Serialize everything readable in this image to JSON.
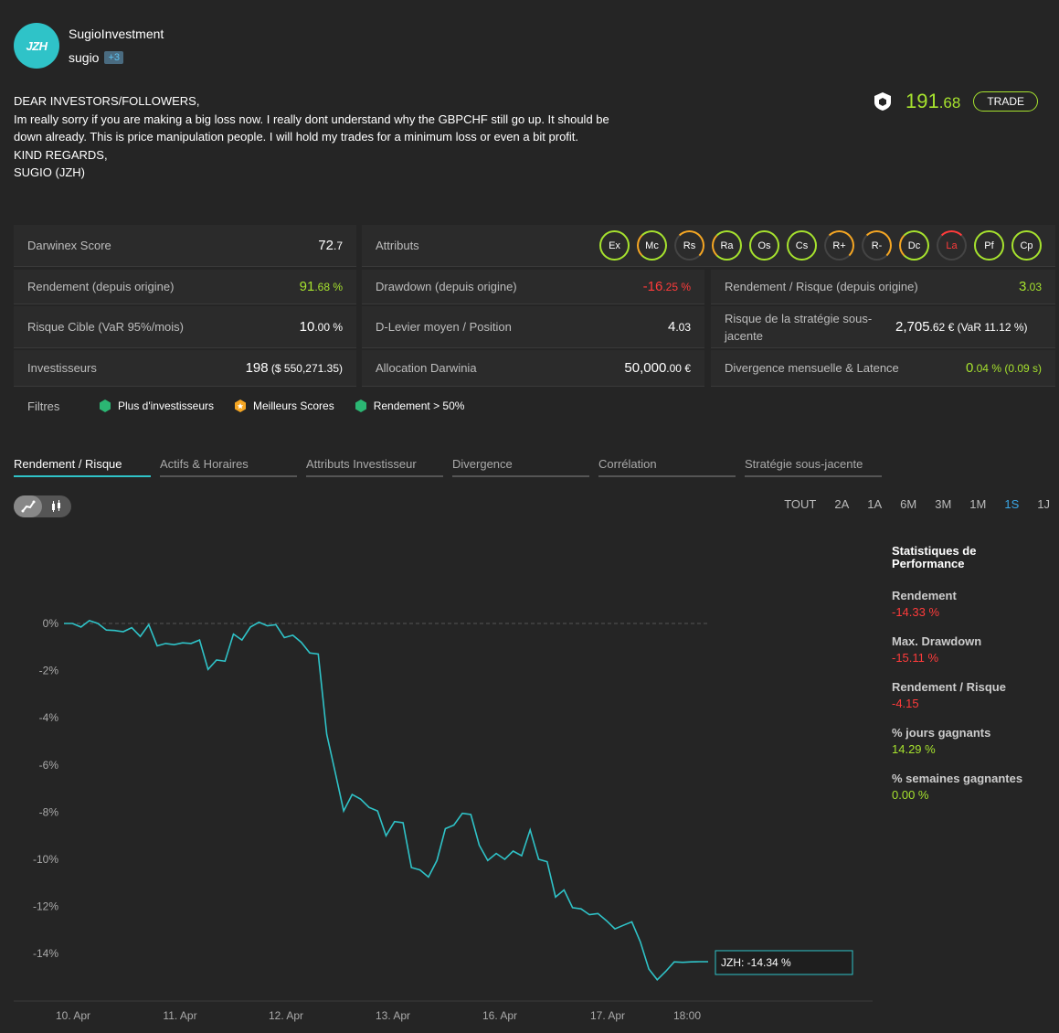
{
  "profile": {
    "avatar_text": "JZH",
    "name": "SugioInvestment",
    "handle": "sugio",
    "badge": "+3"
  },
  "message": [
    "DEAR INVESTORS/FOLLOWERS,",
    "Im really sorry if you are making a big loss now. I really dont understand why the GBPCHF still go up. It should be down already. This is price manipulation people. I will hold my trades for a minimum loss or even a bit profit.",
    "KIND REGARDS,",
    "SUGIO (JZH)"
  ],
  "price": {
    "int": "191",
    "dec": ".68"
  },
  "trade_label": "TRADE",
  "stats": {
    "score_label": "Darwinex Score",
    "score_int": "72",
    "score_dec": ".7",
    "attributes_label": "Attributs",
    "attributes": [
      "Ex",
      "Mc",
      "Rs",
      "Ra",
      "Os",
      "Cs",
      "R+",
      "R-",
      "Dc",
      "La",
      "Pf",
      "Cp"
    ],
    "return_label": "Rendement (depuis origine)",
    "return_int": "91",
    "return_dec": ".68 %",
    "drawdown_label": "Drawdown (depuis origine)",
    "drawdown_int": "-16",
    "drawdown_dec": ".25 %",
    "rr_label": "Rendement / Risque (depuis origine)",
    "rr_int": "3",
    "rr_dec": ".03",
    "var_label": "Risque Cible (VaR 95%/mois)",
    "var_int": "10",
    "var_dec": ".00 %",
    "leverage_label": "D-Levier moyen / Position",
    "leverage_int": "4",
    "leverage_dec": ".03",
    "strategy_risk_label": "Risque de la stratégie sous-jacente",
    "strategy_risk_int": "2,705",
    "strategy_risk_dec": ".62 € (VaR 11.12 %)",
    "investors_label": "Investisseurs",
    "investors_int": "198",
    "investors_dec": " ($ 550,271.35)",
    "allocation_label": "Allocation Darwinia",
    "allocation_int": "50,000",
    "allocation_dec": ".00 €",
    "divergence_label": "Divergence mensuelle & Latence",
    "divergence_int": "0",
    "divergence_dec": ".04 % (0.09 s)"
  },
  "filters": {
    "label": "Filtres",
    "items": [
      "Plus d'investisseurs",
      "Meilleurs Scores",
      "Rendement > 50%"
    ]
  },
  "tabs": [
    "Rendement / Risque",
    "Actifs & Horaires",
    "Attributs Investisseur",
    "Divergence",
    "Corrélation",
    "Stratégie sous-jacente"
  ],
  "ranges": [
    "TOUT",
    "2A",
    "1A",
    "6M",
    "3M",
    "1M",
    "1S",
    "1J"
  ],
  "perf": {
    "title": "Statistiques de Performance",
    "items": [
      {
        "k": "Rendement",
        "v": "-14.33 %",
        "color": "#ff3b3b"
      },
      {
        "k": "Max. Drawdown",
        "v": "-15.11 %",
        "color": "#ff3b3b"
      },
      {
        "k": "Rendement / Risque",
        "v": "-4.15",
        "color": "#ff3b3b"
      },
      {
        "k": "% jours gagnants",
        "v": "14.29 %",
        "color": "#a6e22e"
      },
      {
        "k": "% semaines gagnantes",
        "v": "0.00 %",
        "color": "#a6e22e"
      }
    ]
  },
  "chart_data": {
    "type": "line",
    "ylim": [
      -15.6,
      0.6
    ],
    "yticks": [
      0,
      -2,
      -4,
      -6,
      -8,
      -10,
      -12,
      -14
    ],
    "ytick_labels": [
      "0%",
      "-2%",
      "-4%",
      "-6%",
      "-8%",
      "-10%",
      "-12%",
      "-14%"
    ],
    "xtick_labels": [
      "10. Apr",
      "11. Apr",
      "12. Apr",
      "13. Apr",
      "16. Apr",
      "17. Apr",
      "18:00"
    ],
    "series": [
      {
        "name": "JZH",
        "color": "#2fc3c8",
        "x": [
          0,
          1,
          2,
          3,
          4,
          5,
          6,
          7,
          8,
          9,
          10,
          11,
          12,
          13,
          14,
          15,
          16,
          17,
          18,
          19,
          20,
          21,
          22,
          23,
          24,
          25,
          26,
          27,
          28,
          29,
          30,
          31,
          32,
          33,
          34,
          35,
          36,
          37,
          38,
          39,
          40,
          41,
          42,
          43,
          44,
          45,
          46,
          47,
          48,
          49,
          50,
          51,
          52,
          53,
          54,
          55,
          56,
          57,
          58,
          59,
          60,
          61,
          62,
          63,
          64,
          65,
          66,
          67,
          68,
          69,
          70,
          71,
          72,
          73,
          74,
          75,
          76
        ],
        "values": [
          0.0,
          0.0,
          -0.15,
          0.12,
          0.0,
          -0.28,
          -0.3,
          -0.35,
          -0.18,
          -0.55,
          -0.05,
          -0.95,
          -0.85,
          -0.9,
          -0.82,
          -0.85,
          -0.7,
          -1.95,
          -1.55,
          -1.6,
          -0.45,
          -0.7,
          -0.15,
          0.05,
          -0.1,
          -0.05,
          -0.6,
          -0.5,
          -0.8,
          -1.25,
          -1.3,
          -4.7,
          -6.3,
          -7.95,
          -7.25,
          -7.45,
          -7.8,
          -7.95,
          -9.0,
          -8.4,
          -8.45,
          -10.35,
          -10.45,
          -10.75,
          -10.05,
          -8.7,
          -8.55,
          -8.05,
          -8.1,
          -9.4,
          -10.05,
          -9.75,
          -10.0,
          -9.65,
          -9.85,
          -8.75,
          -10.0,
          -10.1,
          -11.6,
          -11.3,
          -12.05,
          -12.1,
          -12.35,
          -12.3,
          -12.6,
          -12.95,
          -12.8,
          -12.65,
          -13.5,
          -14.65,
          -15.11,
          -14.75,
          -14.35,
          -14.37,
          -14.35,
          -14.34,
          -14.34
        ],
        "last_label": "JZH: -14.34 %"
      }
    ]
  }
}
